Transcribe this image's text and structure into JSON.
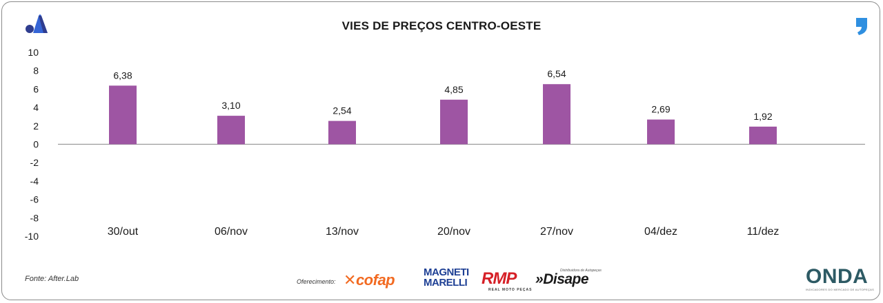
{
  "title": "VIES DE PREÇOS CENTRO-OESTE",
  "source": "Fonte: After.Lab",
  "offer_label": "Oferecimento:",
  "sponsors": {
    "cofap": "cofap",
    "magneti_line1": "MAGNETI",
    "magneti_line2": "MARELLI",
    "rmp": "RMP",
    "rmp_sub": "REAL MOTO PEÇAS",
    "disape": "Disape",
    "disape_sub": "Distribuidora de Autopeças",
    "onda": "ONDA",
    "onda_sub": "INDICADORES DO MERCADO DE AUTOPEÇAS"
  },
  "icons": {
    "brand_left": "logo-a-icon",
    "brand_right": "quote-icon"
  },
  "colors": {
    "bar": "#9e55a3",
    "axis": "#9a9a9a",
    "text": "#1a1a1a"
  },
  "chart_data": {
    "type": "bar",
    "title": "VIES DE PREÇOS CENTRO-OESTE",
    "categories": [
      "30/out",
      "06/nov",
      "13/nov",
      "20/nov",
      "27/nov",
      "04/dez",
      "11/dez"
    ],
    "values": [
      6.38,
      3.1,
      2.54,
      4.85,
      6.54,
      2.69,
      1.92
    ],
    "labels": [
      "6,38",
      "3,10",
      "2,54",
      "4,85",
      "6,54",
      "2,69",
      "1,92"
    ],
    "yticks": [
      "10",
      "8",
      "6",
      "4",
      "2",
      "0",
      "-2",
      "-4",
      "-6",
      "-8",
      "-10"
    ],
    "ylim": [
      -10,
      10
    ],
    "grid": false,
    "legend": "none",
    "xlabel": "",
    "ylabel": ""
  }
}
